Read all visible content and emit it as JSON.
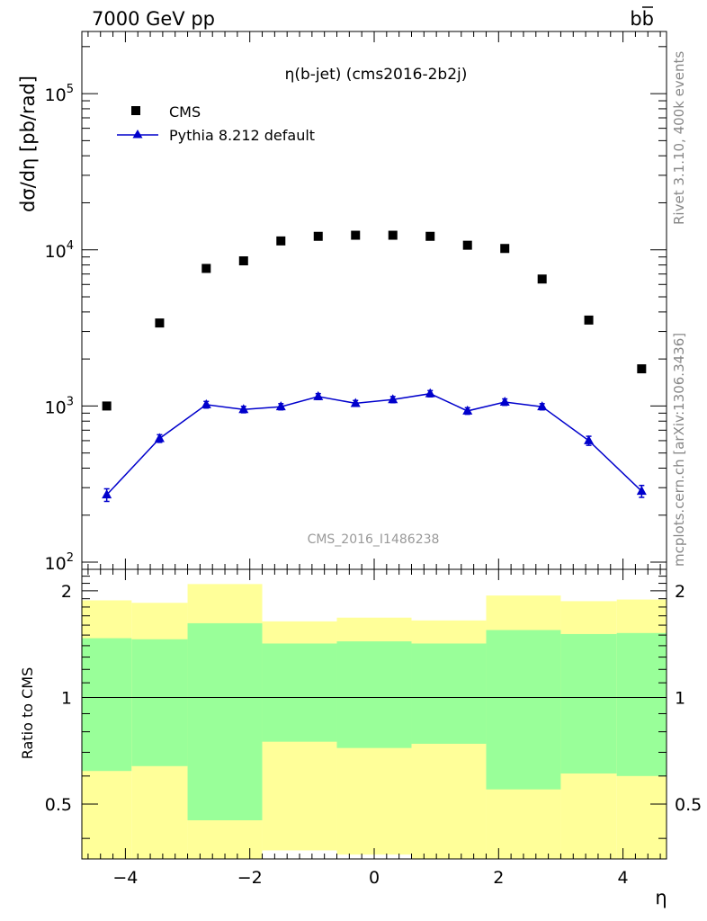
{
  "header": {
    "left": "7000 GeV pp",
    "right_base": "b",
    "right_bar": "b"
  },
  "side": {
    "rivet": "Rivet 3.1.10,  400k events",
    "mcplots": "mcplots.cern.ch [arXiv:1306.3436]"
  },
  "colors": {
    "cms": "#000000",
    "pythia": "#0000cc",
    "band_inner": "#99ff99",
    "band_outer": "#ffff99",
    "watermark": "#999999"
  },
  "chart_data": [
    {
      "type": "scatter",
      "panel": "main",
      "title": "η(b-jet) (cms2016-2b2j)",
      "ylabel": "dσ/dη [pb/rad]",
      "watermark": "CMS_2016_I1486238",
      "yscale": "log",
      "xlim": [
        -4.7,
        4.7
      ],
      "ylim": [
        90,
        250000
      ],
      "y_ticklabels": [
        {
          "base": "10",
          "exp": "2",
          "value": 100
        },
        {
          "base": "10",
          "exp": "3",
          "value": 1000
        },
        {
          "base": "10",
          "exp": "4",
          "value": 10000
        },
        {
          "base": "10",
          "exp": "5",
          "value": 100000
        }
      ],
      "x": [
        -4.3,
        -3.45,
        -2.7,
        -2.1,
        -1.5,
        -0.9,
        -0.3,
        0.3,
        0.9,
        1.5,
        2.1,
        2.7,
        3.45,
        4.3
      ],
      "series": [
        {
          "name": "CMS",
          "marker": "square",
          "values": [
            1000,
            3400,
            7600,
            8500,
            11400,
            12200,
            12400,
            12400,
            12200,
            10700,
            10200,
            6500,
            3550,
            1730
          ]
        },
        {
          "name": "Pythia 8.212 default",
          "marker": "triangle",
          "values": [
            270,
            620,
            1020,
            950,
            990,
            1150,
            1040,
            1100,
            1200,
            930,
            1060,
            990,
            600,
            285
          ],
          "errors": [
            25,
            35,
            50,
            45,
            45,
            50,
            45,
            50,
            55,
            45,
            50,
            45,
            40,
            25
          ]
        }
      ]
    },
    {
      "type": "area",
      "panel": "ratio",
      "ylabel": "Ratio to CMS",
      "xlabel": "η",
      "xlim": [
        -4.7,
        4.7
      ],
      "ylim": [
        0.35,
        2.3
      ],
      "x_ticks": [
        -4,
        -2,
        0,
        2,
        4
      ],
      "x_ticklabels": [
        "−4",
        "−2",
        "0",
        "2",
        "4"
      ],
      "y_ticks": [
        0.5,
        1,
        2
      ],
      "y_ticklabels": [
        "0.5",
        "1",
        "2"
      ],
      "bins": [
        -4.7,
        -3.9,
        -3.0,
        -2.4,
        -1.8,
        -1.2,
        -0.6,
        0.0,
        0.6,
        1.2,
        1.8,
        2.4,
        3.0,
        3.9,
        4.7
      ],
      "bins_drawn": [
        [
          -4.7,
          -3.9
        ],
        [
          -3.9,
          -3.0
        ],
        [
          -3.0,
          -1.8
        ],
        [
          -1.8,
          -0.6
        ],
        [
          -0.6,
          0.6
        ],
        [
          0.6,
          1.8
        ],
        [
          1.8,
          3.0
        ],
        [
          3.0,
          3.9
        ],
        [
          3.9,
          4.7
        ]
      ],
      "inner_band": [
        [
          0.62,
          1.47
        ],
        [
          0.64,
          1.46
        ],
        [
          0.45,
          1.62
        ],
        [
          0.75,
          1.42
        ],
        [
          0.72,
          1.44
        ],
        [
          0.74,
          1.42
        ],
        [
          0.55,
          1.55
        ],
        [
          0.61,
          1.51
        ],
        [
          0.6,
          1.52
        ]
      ],
      "outer_band": [
        [
          0.35,
          1.88
        ],
        [
          0.35,
          1.85
        ],
        [
          0.35,
          2.09
        ],
        [
          0.37,
          1.64
        ],
        [
          0.36,
          1.68
        ],
        [
          0.35,
          1.65
        ],
        [
          0.35,
          1.94
        ],
        [
          0.35,
          1.87
        ],
        [
          0.35,
          1.89
        ]
      ],
      "reference": 1
    }
  ]
}
